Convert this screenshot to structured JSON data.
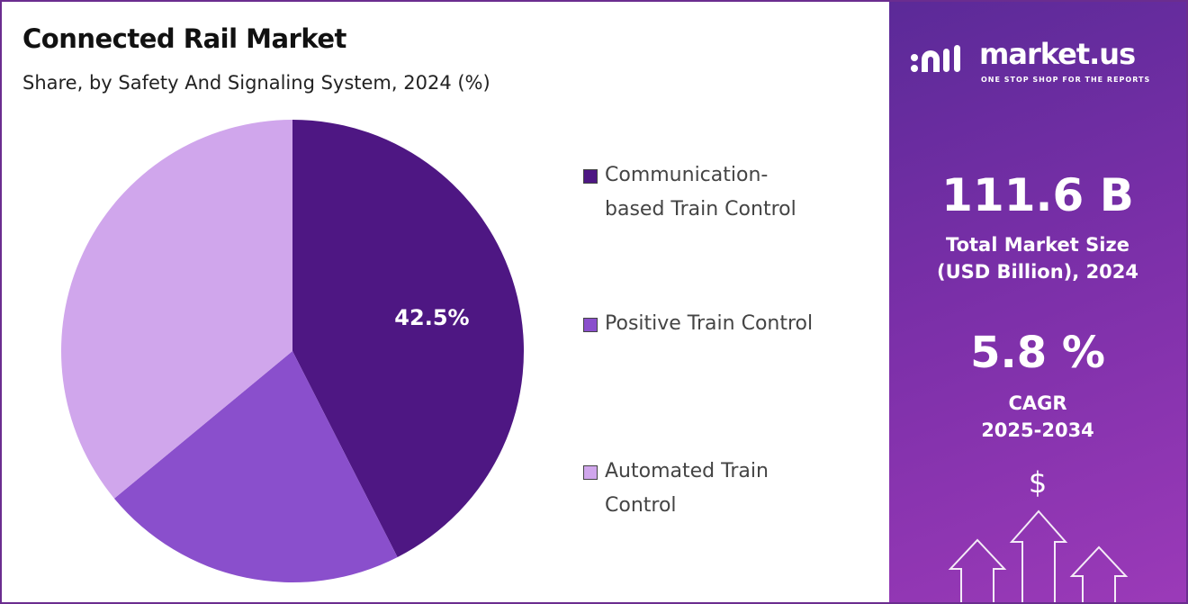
{
  "header": {
    "title": "Connected Rail Market",
    "subtitle": "Share, by Safety And Signaling System, 2024 (%)"
  },
  "chart_data": {
    "type": "pie",
    "title": "Connected Rail Market",
    "subtitle": "Share, by Safety And Signaling System, 2024 (%)",
    "categories": [
      "Communication-based Train Control",
      "Positive Train Control",
      "Automated Train Control"
    ],
    "values": [
      42.5,
      21.5,
      36.0
    ],
    "data_labels": [
      "42.5%",
      "",
      ""
    ],
    "colors": [
      "#4e1783",
      "#8a4fcc",
      "#d0a6ec"
    ],
    "legend_position": "right"
  },
  "legend": [
    {
      "line1": "Communication-",
      "line2": "based Train Control"
    },
    {
      "line1": "Positive Train Control",
      "line2": ""
    },
    {
      "line1": "Automated Train",
      "line2": "Control"
    }
  ],
  "panel": {
    "logo_text": "market.us",
    "logo_tagline": "ONE STOP SHOP FOR THE REPORTS",
    "market_size": "111.6 B",
    "market_size_label_1": "Total Market Size",
    "market_size_label_2": "(USD Billion), 2024",
    "cagr": "5.8 %",
    "cagr_label_1": "CAGR",
    "cagr_label_2": "2025-2034",
    "currency_symbol": "$"
  }
}
